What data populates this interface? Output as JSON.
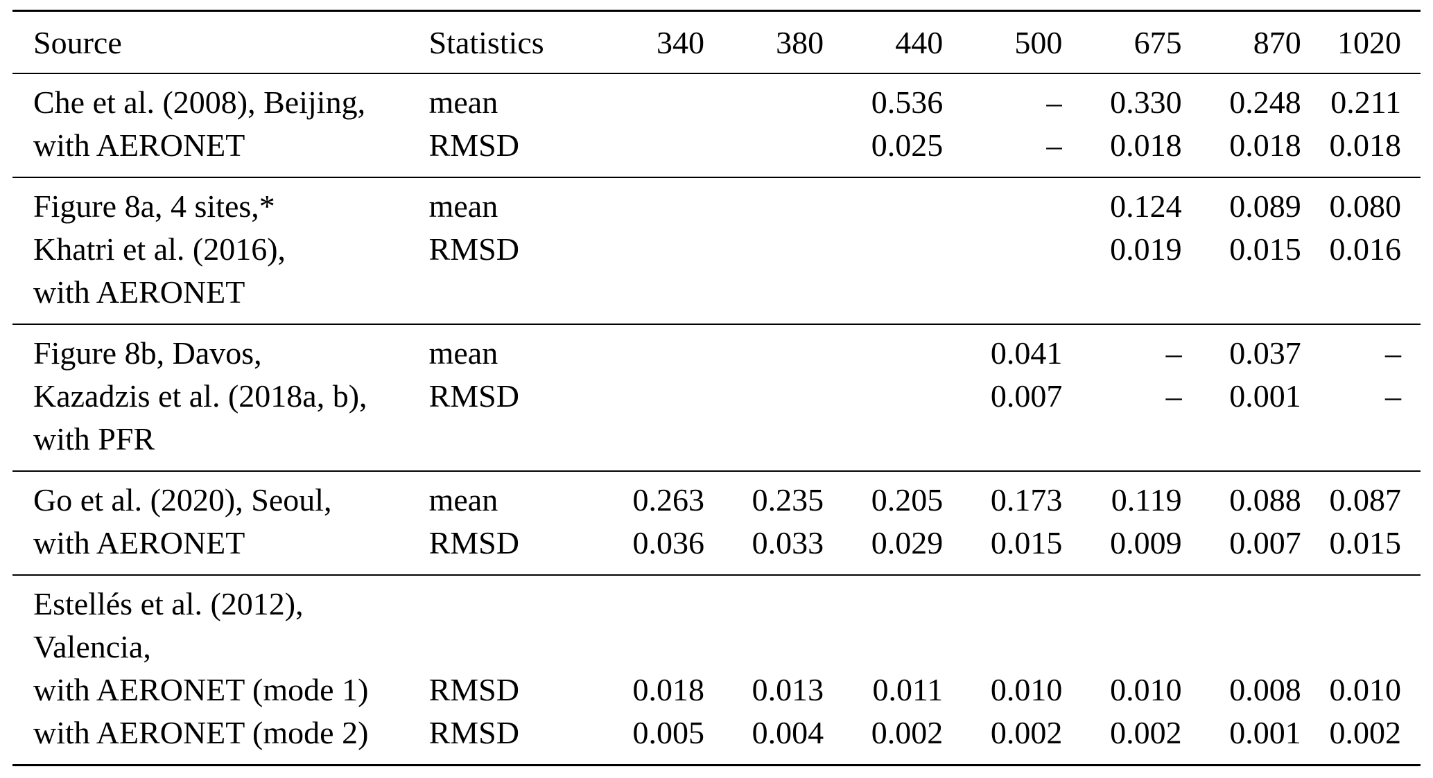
{
  "page": {
    "background_color": "#ffffff",
    "text_color": "#000000",
    "rule_color": "#000000"
  },
  "table": {
    "columns": [
      "Source",
      "Statistics",
      "340",
      "380",
      "440",
      "500",
      "675",
      "870",
      "1020"
    ],
    "groups": [
      {
        "rows": [
          [
            "Che et al. (2008), Beijing,",
            "mean",
            "",
            "",
            "0.536",
            "–",
            "0.330",
            "0.248",
            "0.211"
          ],
          [
            "with AERONET",
            "RMSD",
            "",
            "",
            "0.025",
            "–",
            "0.018",
            "0.018",
            "0.018"
          ]
        ]
      },
      {
        "rows": [
          [
            "Figure 8a, 4 sites,*",
            "mean",
            "",
            "",
            "",
            "",
            "0.124",
            "0.089",
            "0.080"
          ],
          [
            "Khatri et al. (2016),",
            "RMSD",
            "",
            "",
            "",
            "",
            "0.019",
            "0.015",
            "0.016"
          ],
          [
            "with AERONET",
            "",
            "",
            "",
            "",
            "",
            "",
            "",
            ""
          ]
        ]
      },
      {
        "rows": [
          [
            "Figure 8b, Davos,",
            "mean",
            "",
            "",
            "",
            "0.041",
            "–",
            "0.037",
            "–"
          ],
          [
            "Kazadzis et al. (2018a, b),",
            "RMSD",
            "",
            "",
            "",
            "0.007",
            "–",
            "0.001",
            "–"
          ],
          [
            "with PFR",
            "",
            "",
            "",
            "",
            "",
            "",
            "",
            ""
          ]
        ]
      },
      {
        "rows": [
          [
            "Go et al. (2020), Seoul,",
            "mean",
            "0.263",
            "0.235",
            "0.205",
            "0.173",
            "0.119",
            "0.088",
            "0.087"
          ],
          [
            "with AERONET",
            "RMSD",
            "0.036",
            "0.033",
            "0.029",
            "0.015",
            "0.009",
            "0.007",
            "0.015"
          ]
        ]
      },
      {
        "rows": [
          [
            "Estellés et al. (2012),",
            "",
            "",
            "",
            "",
            "",
            "",
            "",
            ""
          ],
          [
            "Valencia,",
            "",
            "",
            "",
            "",
            "",
            "",
            "",
            ""
          ],
          [
            "with AERONET (mode 1)",
            "RMSD",
            "0.018",
            "0.013",
            "0.011",
            "0.010",
            "0.010",
            "0.008",
            "0.010"
          ],
          [
            "with AERONET (mode 2)",
            "RMSD",
            "0.005",
            "0.004",
            "0.002",
            "0.002",
            "0.002",
            "0.001",
            "0.002"
          ]
        ]
      }
    ]
  }
}
